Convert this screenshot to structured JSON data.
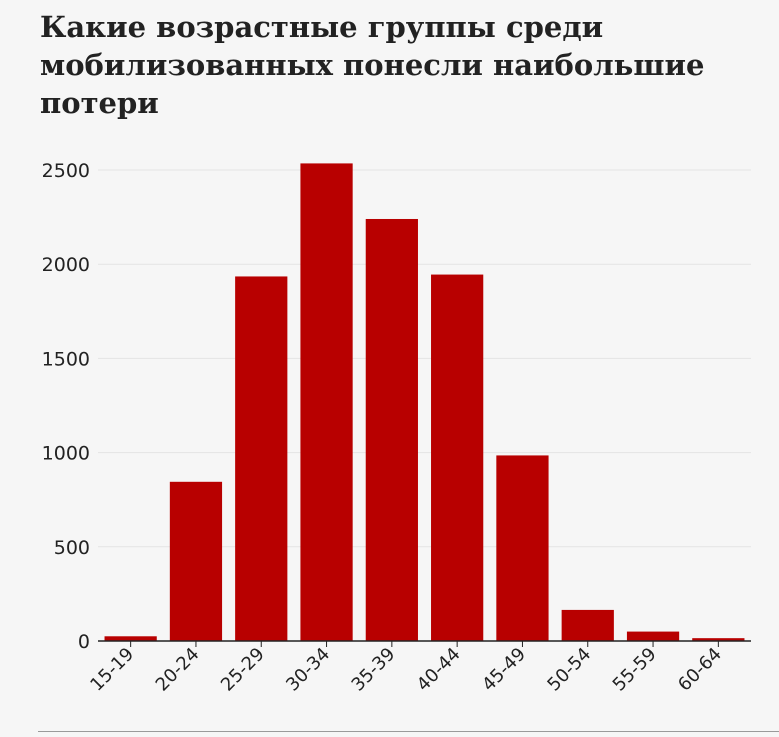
{
  "title": "Какие возрастные группы среди мобилизованных понесли наибольшие потери",
  "chart_data": {
    "type": "bar",
    "title": "Какие возрастные группы среди мобилизованных понесли наибольшие потери",
    "xlabel": "",
    "ylabel": "",
    "categories": [
      "15-19",
      "20-24",
      "25-29",
      "30-34",
      "35-39",
      "40-44",
      "45-49",
      "50-54",
      "55-59",
      "60-64"
    ],
    "values": [
      25,
      845,
      1935,
      2535,
      2240,
      1945,
      985,
      165,
      50,
      15
    ],
    "ylim": [
      0,
      2600
    ],
    "yticks": [
      0,
      500,
      1000,
      1500,
      2000,
      2500
    ],
    "grid": true,
    "bar_color": "#b80000",
    "grid_color": "#e4e4e4",
    "axis_color": "#222222"
  }
}
